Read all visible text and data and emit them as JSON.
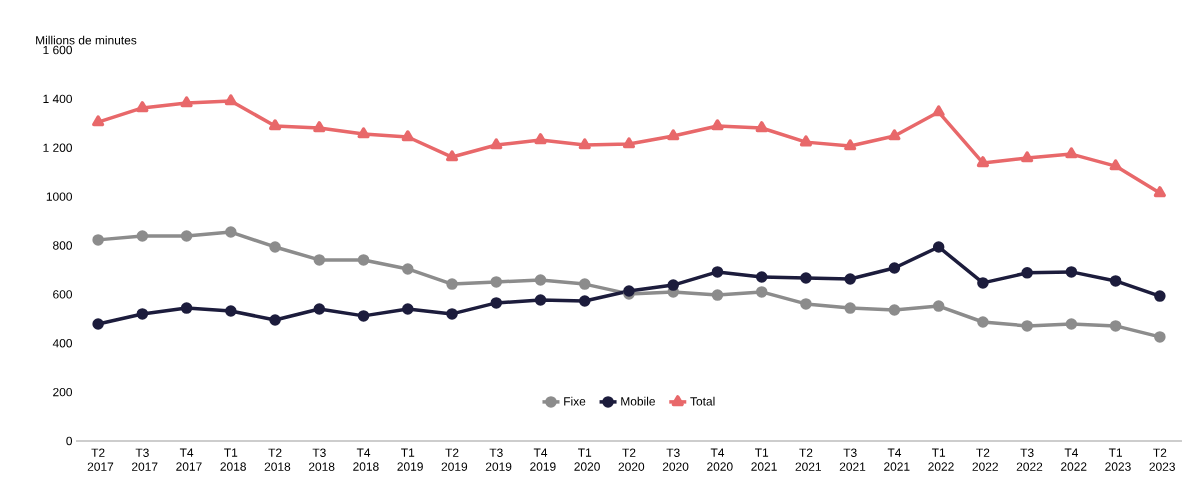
{
  "chart_data": {
    "type": "line",
    "ylabel": "Millions de minutes",
    "categories": [
      "T2 2017",
      "T3 2017",
      "T4 2017",
      "T1 2018",
      "T2 2018",
      "T3 2018",
      "T4 2018",
      "T1 2019",
      "T2 2019",
      "T3 2019",
      "T4 2019",
      "T1 2020",
      "T2 2020",
      "T3 2020",
      "T4 2020",
      "T1 2021",
      "T2 2021",
      "T3 2021",
      "T4 2021",
      "T1 2022",
      "T2 2022",
      "T3 2022",
      "T4 2022",
      "T1 2023",
      "T2 2023"
    ],
    "series": [
      {
        "name": "Fixe",
        "color": "#8c8c8c",
        "marker": "circle",
        "values": [
          823,
          839,
          839,
          855,
          794,
          741,
          741,
          704,
          642,
          651,
          659,
          642,
          602,
          610,
          597,
          610,
          561,
          544,
          536,
          552,
          487,
          471,
          479,
          471,
          426
        ]
      },
      {
        "name": "Mobile",
        "color": "#1c1c3c",
        "marker": "circle",
        "values": [
          479,
          520,
          544,
          532,
          495,
          540,
          512,
          540,
          520,
          565,
          577,
          573,
          614,
          638,
          692,
          671,
          667,
          663,
          708,
          794,
          647,
          688,
          692,
          655,
          593
        ]
      },
      {
        "name": "Total",
        "color": "#e8686a",
        "marker": "triangle",
        "values": [
          1305,
          1363,
          1383,
          1391,
          1289,
          1281,
          1256,
          1244,
          1162,
          1211,
          1232,
          1211,
          1215,
          1248,
          1289,
          1281,
          1223,
          1207,
          1248,
          1346,
          1138,
          1158,
          1174,
          1125,
          1015
        ]
      }
    ],
    "ylim": [
      0,
      1600
    ],
    "yticks": [
      0,
      200,
      400,
      600,
      800,
      1000,
      {
        "value": 1200,
        "label": "1 200"
      },
      {
        "value": 1400,
        "label": "1 400"
      },
      {
        "value": 1600,
        "label": "1 600"
      }
    ],
    "legend": "bottom",
    "grid": false
  }
}
